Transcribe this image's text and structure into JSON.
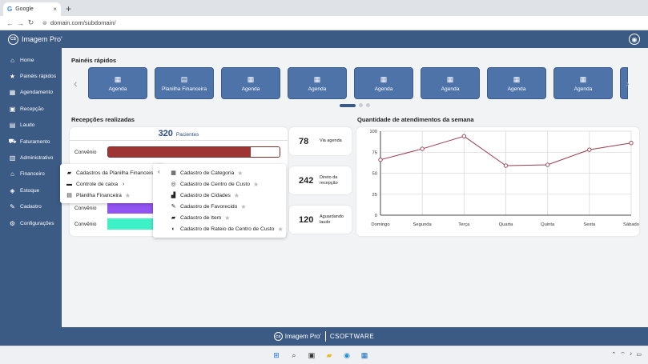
{
  "browser": {
    "tab_title": "Google",
    "tab_icon": "G",
    "close_glyph": "×",
    "new_tab_glyph": "+",
    "back_glyph": "←",
    "forward_glyph": "→",
    "reload_glyph": "↻",
    "url": "domain.com/subdomain/"
  },
  "app": {
    "brand_name": "Imagem Pro'",
    "brand_mark": "CS",
    "accent_color": "#3b5a84"
  },
  "sidebar": {
    "items": [
      {
        "label": "Home",
        "icon": "home-icon",
        "glyph": "⌂"
      },
      {
        "label": "Painéis rápidos",
        "icon": "star-icon",
        "glyph": "★"
      },
      {
        "label": "Agendamento",
        "icon": "calendar-icon",
        "glyph": "▦"
      },
      {
        "label": "Recepção",
        "icon": "reception-icon",
        "glyph": "▣"
      },
      {
        "label": "Laudo",
        "icon": "document-icon",
        "glyph": "▤"
      },
      {
        "label": "Faturamento",
        "icon": "truck-icon",
        "glyph": "⛟"
      },
      {
        "label": "Administrativo",
        "icon": "briefcase-icon",
        "glyph": "▥"
      },
      {
        "label": "Financeiro",
        "icon": "bank-icon",
        "glyph": "⌂"
      },
      {
        "label": "Estoque",
        "icon": "box-icon",
        "glyph": "◈"
      },
      {
        "label": "Cadastro",
        "icon": "edit-icon",
        "glyph": "✎"
      },
      {
        "label": "Configurações",
        "icon": "gear-icon",
        "glyph": "⚙"
      }
    ]
  },
  "quick_panels": {
    "title": "Painéis rápidos",
    "prev_glyph": "‹",
    "next_glyph": "›",
    "tiles": [
      {
        "label": "Agenda",
        "glyph": "▦"
      },
      {
        "label": "Planilha Financeira",
        "glyph": "▤"
      },
      {
        "label": "Agenda",
        "glyph": "▦"
      },
      {
        "label": "Agenda",
        "glyph": "▦"
      },
      {
        "label": "Agenda",
        "glyph": "▦"
      },
      {
        "label": "Agenda",
        "glyph": "▦"
      },
      {
        "label": "Agenda",
        "glyph": "▦"
      },
      {
        "label": "Agenda",
        "glyph": "▦"
      }
    ],
    "page_count": 3,
    "active_page": 1
  },
  "receptions": {
    "title": "Recepções realizadas",
    "total": "320",
    "total_label": "Pacientes",
    "bars": [
      {
        "label": "Convênio",
        "fraction": 0.83,
        "color": "#9e3434"
      },
      {
        "label": "Convênio",
        "fraction": 0.37,
        "color": "#9254f0"
      },
      {
        "label": "Convênio",
        "fraction": 0.37,
        "color": "#3ef2c7"
      }
    ]
  },
  "stats": [
    {
      "value": "78",
      "label": "Via agenda"
    },
    {
      "value": "242",
      "label": "Direto da recepção"
    },
    {
      "value": "120",
      "label": "Aguardando laudo"
    }
  ],
  "attendance_chart": {
    "title": "Quantidade de atendimentos da semana"
  },
  "chart_data": {
    "type": "line",
    "title": "Quantidade de atendimentos da semana",
    "categories": [
      "Domingo",
      "Segunda",
      "Terça",
      "Quarta",
      "Quinta",
      "Sexta",
      "Sábado"
    ],
    "series": [
      {
        "values": [
          66,
          79,
          94,
          59,
          60,
          78,
          86
        ]
      }
    ],
    "ylim": [
      0,
      100
    ],
    "yticks": [
      0,
      25,
      50,
      75,
      100
    ],
    "grid": true,
    "line_color": "#9b3a4c"
  },
  "menu_level1": {
    "items": [
      {
        "label": "Cadastros da Planilha Financeira",
        "icon": "folder-icon",
        "glyph": "▰"
      },
      {
        "label": "Controle de caixa",
        "icon": "cash-register-icon",
        "glyph": "▬",
        "has_submenu": true
      },
      {
        "label": "Planilha Financeira",
        "icon": "spreadsheet-icon",
        "glyph": "▤",
        "starred": true
      }
    ],
    "star_glyph": "★",
    "chevron_glyph": "›"
  },
  "menu_level2": {
    "back_glyph": "‹",
    "items": [
      {
        "label": "Cadastro de Categoria",
        "icon": "category-icon",
        "glyph": "▦"
      },
      {
        "label": "Cadastro de Centro de Custo",
        "icon": "target-icon",
        "glyph": "◎"
      },
      {
        "label": "Cadastro de Cidades",
        "icon": "city-icon",
        "glyph": "▟"
      },
      {
        "label": "Cadastro de Favorecido",
        "icon": "user-edit-icon",
        "glyph": "✎"
      },
      {
        "label": "Cadastro de Item",
        "icon": "folder-icon",
        "glyph": "▰"
      },
      {
        "label": "Cadastro de Rateio de Centro de Custo",
        "icon": "pie-icon",
        "glyph": "◐"
      }
    ],
    "star_glyph": "★"
  },
  "footer": {
    "brand_name": "Imagem Pro'",
    "brand_mark": "CS",
    "company": "CSOFTWARE"
  },
  "taskbar": {
    "icons": [
      {
        "name": "windows-start-icon",
        "glyph": "⊞",
        "color": "#1a73e8"
      },
      {
        "name": "search-icon",
        "glyph": "⌕",
        "color": "#333"
      },
      {
        "name": "task-view-icon",
        "glyph": "▣",
        "color": "#333"
      },
      {
        "name": "file-explorer-icon",
        "glyph": "▰",
        "color": "#e8b923"
      },
      {
        "name": "edge-icon",
        "glyph": "◉",
        "color": "#1b8fd9"
      },
      {
        "name": "store-icon",
        "glyph": "▦",
        "color": "#0f6cbd"
      }
    ],
    "tray": [
      "⌃",
      "⌔",
      "♪",
      "▭"
    ]
  }
}
